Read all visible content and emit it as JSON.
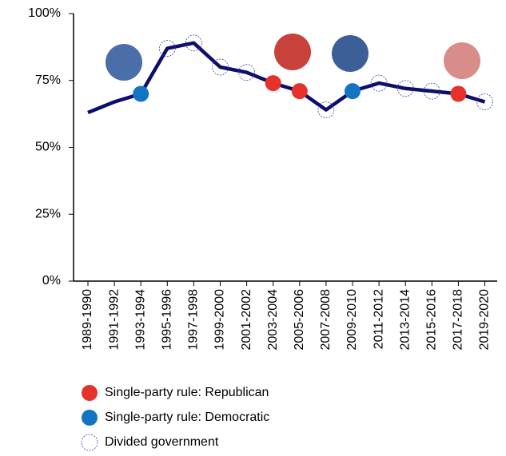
{
  "chart_data": {
    "type": "line",
    "categories": [
      "1989-1990",
      "1991-1992",
      "1993-1994",
      "1995-1996",
      "1997-1998",
      "1999-2000",
      "2001-2002",
      "2003-2004",
      "2005-2006",
      "2007-2008",
      "2009-2010",
      "2011-2012",
      "2013-2014",
      "2015-2016",
      "2017-2018",
      "2019-2020"
    ],
    "values": [
      63,
      67,
      70,
      87,
      89,
      80,
      78,
      74,
      71,
      64,
      71,
      74,
      72,
      71,
      70,
      67
    ],
    "color": "#0d0d6b",
    "marker_kinds": [
      null,
      null,
      1,
      2,
      2,
      2,
      2,
      0,
      0,
      2,
      1,
      2,
      2,
      2,
      0,
      2
    ],
    "legend": [
      {
        "name": "Single-party rule: Republican",
        "color": "#e5322b"
      },
      {
        "name": "Single-party rule: Democratic",
        "color": "#1474c4"
      },
      {
        "name": "Divided government",
        "color": "#3a3fb5"
      }
    ],
    "ylim": [
      0,
      100
    ],
    "yticks": [
      {
        "value": 0,
        "label": "0%"
      },
      {
        "value": 25,
        "label": "25%"
      },
      {
        "value": 50,
        "label": "50%"
      },
      {
        "value": 75,
        "label": "75%"
      },
      {
        "value": 100,
        "label": "100%"
      }
    ],
    "grid": false
  }
}
